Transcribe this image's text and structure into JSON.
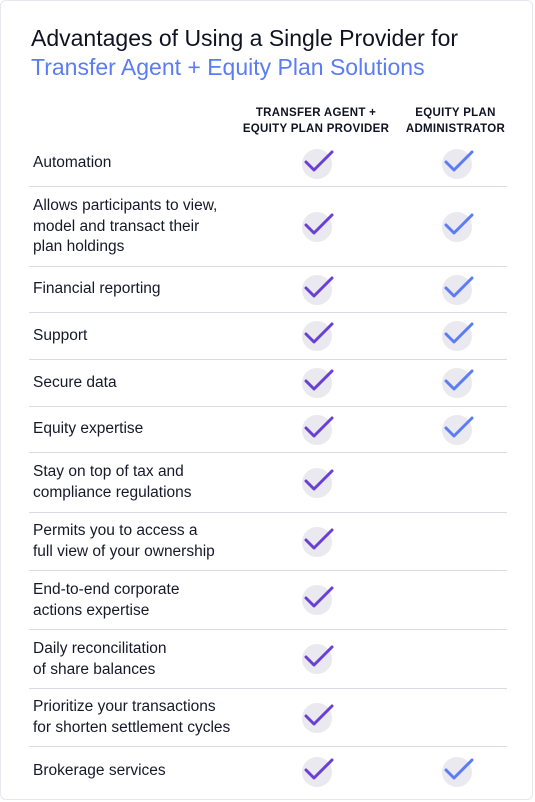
{
  "title_line1": "Advantages of Using a Single Provider for",
  "title_line2": "Transfer Agent + Equity Plan Solutions",
  "columns": [
    {
      "line1": "TRANSFER AGENT +",
      "line2": "EQUITY PLAN PROVIDER"
    },
    {
      "line1": "EQUITY PLAN",
      "line2": "ADMINISTRATOR"
    }
  ],
  "colors": {
    "accent_blue": "#5b7cf5",
    "check_purple": "#6a3fd6",
    "check_blue": "#5b7cf5",
    "check_disc": "#e9e9ef"
  },
  "icons": {
    "check": "checkmark-icon"
  },
  "rows": [
    {
      "lines": [
        "Automation"
      ],
      "provider": true,
      "administrator": true
    },
    {
      "lines": [
        "Allows participants to view,",
        "model and transact their",
        "plan holdings"
      ],
      "provider": true,
      "administrator": true
    },
    {
      "lines": [
        "Financial reporting"
      ],
      "provider": true,
      "administrator": true
    },
    {
      "lines": [
        "Support"
      ],
      "provider": true,
      "administrator": true
    },
    {
      "lines": [
        "Secure data"
      ],
      "provider": true,
      "administrator": true
    },
    {
      "lines": [
        "Equity expertise"
      ],
      "provider": true,
      "administrator": true
    },
    {
      "lines": [
        "Stay on top of tax and",
        "compliance regulations"
      ],
      "provider": true,
      "administrator": false
    },
    {
      "lines": [
        "Permits you to access a",
        "full view of your ownership"
      ],
      "provider": true,
      "administrator": false
    },
    {
      "lines": [
        "End-to-end corporate",
        "actions expertise"
      ],
      "provider": true,
      "administrator": false
    },
    {
      "lines": [
        "Daily reconcilitation",
        "of share balances"
      ],
      "provider": true,
      "administrator": false
    },
    {
      "lines": [
        "Prioritize your transactions",
        "for shorten settlement cycles"
      ],
      "provider": true,
      "administrator": false
    },
    {
      "lines": [
        "Brokerage services"
      ],
      "provider": true,
      "administrator": true
    }
  ]
}
